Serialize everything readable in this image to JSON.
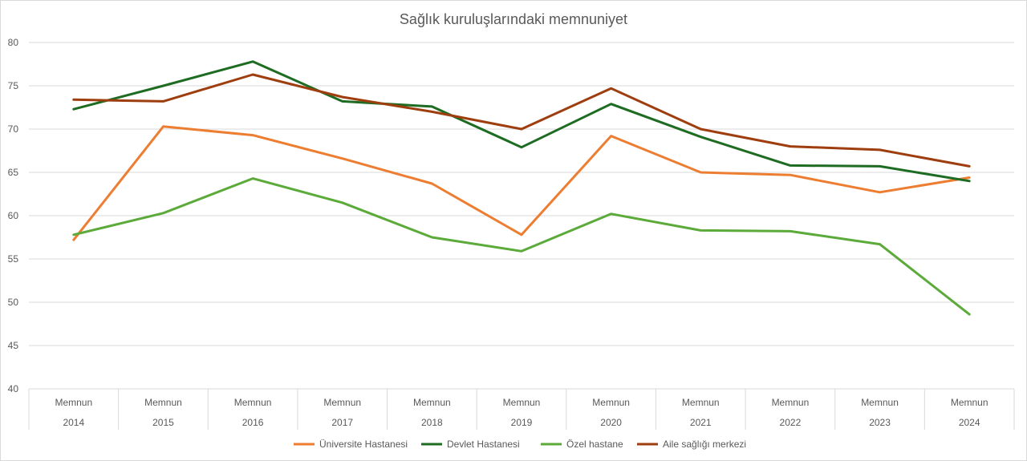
{
  "chart_data": {
    "type": "line",
    "title": "Sağlık kuruluşlarındaki memnuniyet",
    "categories": [
      {
        "label": "Memnun",
        "year": "2014"
      },
      {
        "label": "Memnun",
        "year": "2015"
      },
      {
        "label": "Memnun",
        "year": "2016"
      },
      {
        "label": "Memnun",
        "year": "2017"
      },
      {
        "label": "Memnun",
        "year": "2018"
      },
      {
        "label": "Memnun",
        "year": "2019"
      },
      {
        "label": "Memnun",
        "year": "2020"
      },
      {
        "label": "Memnun",
        "year": "2021"
      },
      {
        "label": "Memnun",
        "year": "2022"
      },
      {
        "label": "Memnun",
        "year": "2023"
      },
      {
        "label": "Memnun",
        "year": "2024"
      }
    ],
    "ylim": [
      40,
      80
    ],
    "yticks": [
      "80",
      "75",
      "70",
      "65",
      "60",
      "55",
      "50",
      "45",
      "40"
    ],
    "grid": true,
    "legend_position": "bottom",
    "series": [
      {
        "name": "Üniversite Hastanesi",
        "color": "#ED7D31",
        "values": [
          57.2,
          70.3,
          69.3,
          66.6,
          63.7,
          57.8,
          69.2,
          65.0,
          64.7,
          62.7,
          64.4
        ]
      },
      {
        "name": "Devlet Hastanesi",
        "color": "#1E6B22",
        "values": [
          72.3,
          75.0,
          77.8,
          73.2,
          72.6,
          67.9,
          72.9,
          69.1,
          65.8,
          65.7,
          64.0
        ]
      },
      {
        "name": "Özel hastane",
        "color": "#5BAA3A",
        "values": [
          57.8,
          60.3,
          64.3,
          61.5,
          57.5,
          55.9,
          60.2,
          58.3,
          58.2,
          56.7,
          48.6
        ]
      },
      {
        "name": "Aile sağlığı merkezi",
        "color": "#9E3E0F",
        "values": [
          73.4,
          73.2,
          76.3,
          73.7,
          72.0,
          70.0,
          74.7,
          70.0,
          68.0,
          67.6,
          65.7
        ]
      }
    ]
  }
}
